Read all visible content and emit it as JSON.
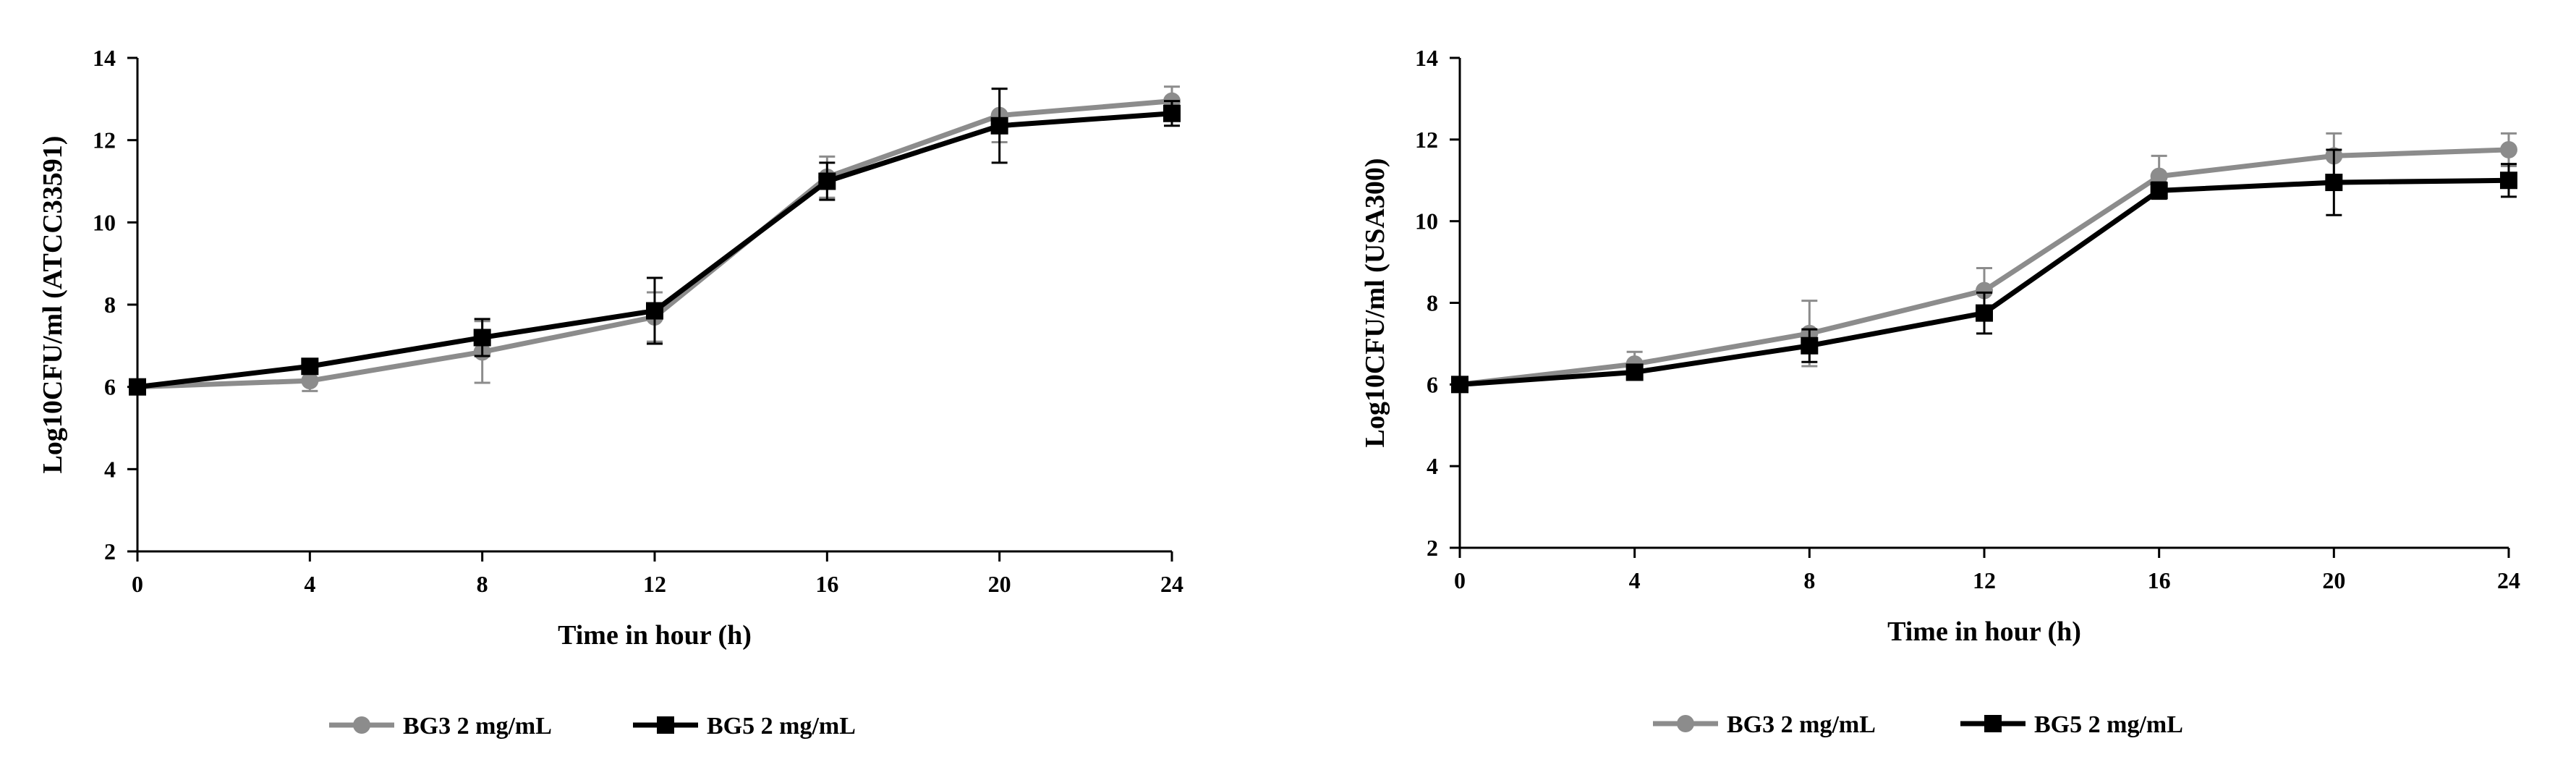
{
  "chart_data": [
    {
      "type": "line",
      "xlabel": "Time in hour (h)",
      "ylabel": "Log10CFU/ml (ATCC33591)",
      "x": [
        0,
        4,
        8,
        12,
        16,
        20,
        24
      ],
      "xticks": [
        "0",
        "4",
        "8",
        "12",
        "16",
        "20",
        "24"
      ],
      "yticks": [
        "2",
        "4",
        "6",
        "8",
        "10",
        "12",
        "14"
      ],
      "xlim": [
        0,
        24
      ],
      "ylim": [
        2,
        14
      ],
      "grid": false,
      "legend_position": "bottom",
      "series": [
        {
          "name": "BG3 2 mg/mL",
          "color": "#8c8c8c",
          "marker": "circle",
          "values": [
            6.0,
            6.15,
            6.85,
            7.7,
            11.1,
            12.6,
            12.95
          ],
          "errors": [
            0.0,
            0.25,
            0.75,
            0.6,
            0.5,
            0.65,
            0.35
          ]
        },
        {
          "name": "BG5 2 mg/mL",
          "color": "#000000",
          "marker": "square",
          "values": [
            6.0,
            6.5,
            7.2,
            7.85,
            11.0,
            12.35,
            12.65
          ],
          "errors": [
            0.0,
            0.1,
            0.45,
            0.8,
            0.45,
            0.9,
            0.3
          ]
        }
      ]
    },
    {
      "type": "line",
      "xlabel": "Time in hour (h)",
      "ylabel": "Log10CFU/ml (USA300)",
      "x": [
        0,
        4,
        8,
        12,
        16,
        20,
        24
      ],
      "xticks": [
        "0",
        "4",
        "8",
        "12",
        "16",
        "20",
        "24"
      ],
      "yticks": [
        "2",
        "4",
        "6",
        "8",
        "10",
        "12",
        "14"
      ],
      "xlim": [
        0,
        24
      ],
      "ylim": [
        2,
        14
      ],
      "grid": false,
      "legend_position": "bottom",
      "series": [
        {
          "name": "BG3 2 mg/mL",
          "color": "#8c8c8c",
          "marker": "circle",
          "values": [
            6.0,
            6.5,
            7.25,
            8.3,
            11.1,
            11.6,
            11.75
          ],
          "errors": [
            0.0,
            0.3,
            0.8,
            0.55,
            0.5,
            0.55,
            0.4
          ]
        },
        {
          "name": "BG5 2 mg/mL",
          "color": "#000000",
          "marker": "square",
          "values": [
            6.0,
            6.3,
            6.95,
            7.75,
            10.75,
            10.95,
            11.0
          ],
          "errors": [
            0.0,
            0.1,
            0.4,
            0.5,
            0.2,
            0.8,
            0.4
          ]
        }
      ]
    }
  ]
}
